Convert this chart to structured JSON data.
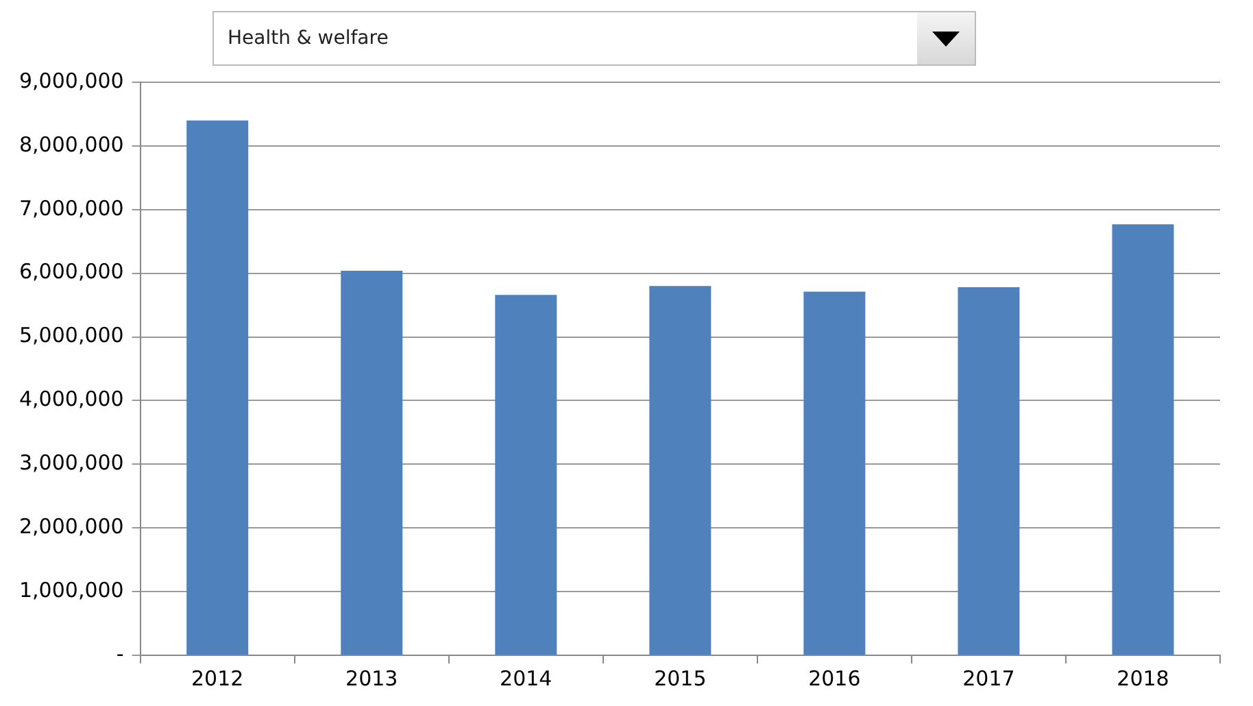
{
  "chart_data": {
    "type": "bar",
    "title": "Health & welfare",
    "categories": [
      "2012",
      "2013",
      "2014",
      "2015",
      "2016",
      "2017",
      "2018"
    ],
    "values": [
      8400000,
      6040000,
      5660000,
      5800000,
      5710000,
      5780000,
      6770000
    ],
    "color": "#4f81bd",
    "ylim": [
      0,
      9000000
    ],
    "yticks": [
      {
        "value": 0,
        "label": "-"
      },
      {
        "value": 1000000,
        "label": "1,000,000"
      },
      {
        "value": 2000000,
        "label": "2,000,000"
      },
      {
        "value": 3000000,
        "label": "3,000,000"
      },
      {
        "value": 4000000,
        "label": "4,000,000"
      },
      {
        "value": 5000000,
        "label": "5,000,000"
      },
      {
        "value": 6000000,
        "label": "6,000,000"
      },
      {
        "value": 7000000,
        "label": "7,000,000"
      },
      {
        "value": 8000000,
        "label": "8,000,000"
      },
      {
        "value": 9000000,
        "label": "9,000,000"
      }
    ],
    "grid": "y",
    "legend": false
  }
}
